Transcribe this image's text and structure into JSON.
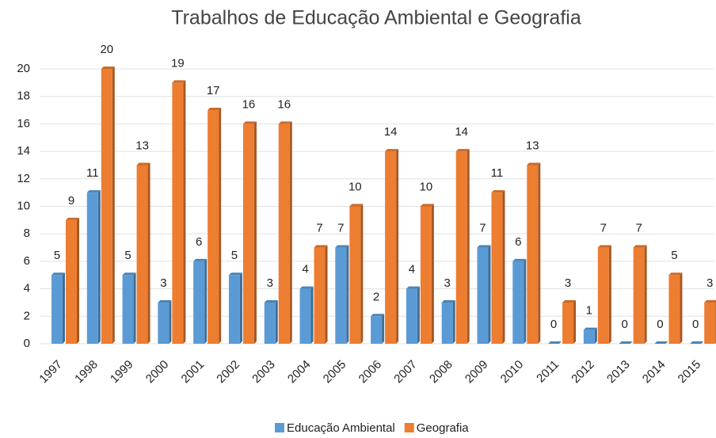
{
  "chart_data": {
    "type": "bar",
    "title": "Trabalhos de Educação Ambiental e Geografia",
    "categories": [
      "1997",
      "1998",
      "1999",
      "2000",
      "2001",
      "2002",
      "2003",
      "2004",
      "2005",
      "2006",
      "2007",
      "2008",
      "2009",
      "2010",
      "2011",
      "2012",
      "2013",
      "2014",
      "2015"
    ],
    "series": [
      {
        "name": "Educação Ambiental",
        "color": "#5b9bd5",
        "values": [
          5,
          11,
          5,
          3,
          6,
          5,
          3,
          4,
          7,
          2,
          4,
          3,
          7,
          6,
          0,
          1,
          0,
          0,
          0
        ]
      },
      {
        "name": "Geografia",
        "color": "#ed7d31",
        "values": [
          9,
          20,
          13,
          19,
          17,
          16,
          16,
          7,
          10,
          14,
          10,
          14,
          11,
          13,
          3,
          7,
          7,
          5,
          3
        ]
      }
    ],
    "ylim": [
      0,
      20
    ],
    "yticks": [
      0,
      2,
      4,
      6,
      8,
      10,
      12,
      14,
      16,
      18,
      20
    ],
    "grid": true,
    "legend": "bottom"
  }
}
